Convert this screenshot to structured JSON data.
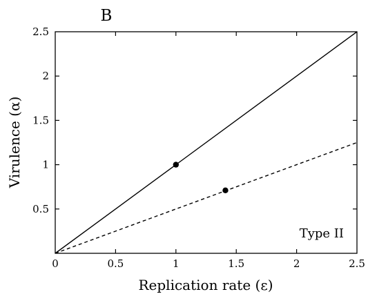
{
  "chart_data": {
    "type": "line",
    "panel_label": "B",
    "xlabel": "Replication rate (ε)",
    "ylabel": "Virulence (α)",
    "xlim": [
      0,
      2.5
    ],
    "ylim": [
      0,
      2.5
    ],
    "x_ticks": [
      0,
      0.5,
      1,
      1.5,
      2,
      2.5
    ],
    "x_tick_labels": [
      "0",
      "0.5",
      "1",
      "1.5",
      "2",
      "2.5"
    ],
    "y_ticks": [
      0.5,
      1,
      1.5,
      2,
      2.5
    ],
    "y_tick_labels": [
      "0.5",
      "1",
      "1.5",
      "2",
      "2.5"
    ],
    "annotation": "Type II",
    "grid": false,
    "series": [
      {
        "style": "solid",
        "color": "#000000",
        "x": [
          0,
          2.5
        ],
        "y": [
          0,
          2.5
        ],
        "points": [
          {
            "x": 1.0,
            "y": 1.0
          }
        ]
      },
      {
        "style": "dashed",
        "color": "#000000",
        "x": [
          0,
          2.5
        ],
        "y": [
          0,
          1.25
        ],
        "points": [
          {
            "x": 1.41,
            "y": 0.71
          }
        ]
      }
    ]
  }
}
